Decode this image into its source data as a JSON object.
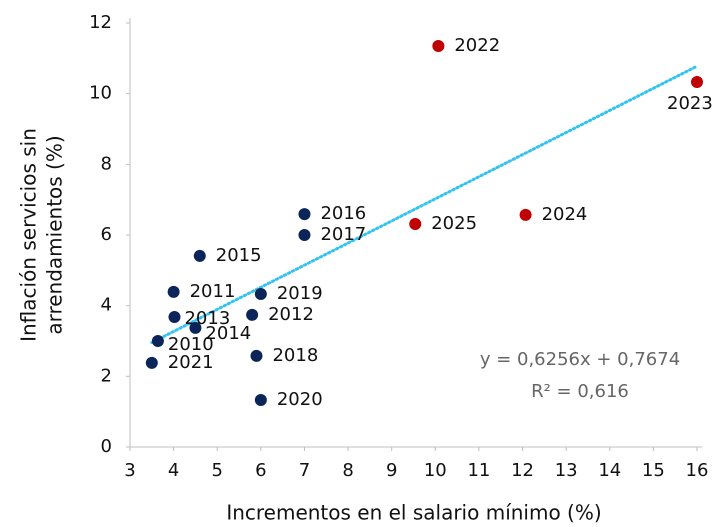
{
  "chart_data": {
    "type": "scatter",
    "xlabel": "Incrementos en el salario mínimo (%)",
    "ylabel": [
      "Inflación servicios sin",
      "arrendamientos (%)"
    ],
    "xlim": [
      3,
      16
    ],
    "xticks": [
      3,
      4,
      5,
      6,
      7,
      8,
      9,
      10,
      11,
      12,
      13,
      14,
      15,
      16
    ],
    "ylim": [
      0,
      12
    ],
    "yticks": [
      0,
      2,
      4,
      6,
      8,
      10,
      12
    ],
    "series": [
      {
        "color": "#0b2559",
        "labels": [
          "2010",
          "2011",
          "2012",
          "2013",
          "2014",
          "2015",
          "2016",
          "2017",
          "2018",
          "2019",
          "2020",
          "2021"
        ],
        "x": [
          3.64,
          4.0,
          5.8,
          4.02,
          4.5,
          4.6,
          7.0,
          7.0,
          5.9,
          6.0,
          6.0,
          3.5
        ],
        "values": [
          3.0,
          4.39,
          3.74,
          3.68,
          3.37,
          5.41,
          6.59,
          6.0,
          2.58,
          4.33,
          1.33,
          2.38
        ]
      },
      {
        "color": "#c00000",
        "labels": [
          "2022",
          "2023",
          "2024",
          "2025"
        ],
        "x": [
          10.07,
          16.0,
          12.07,
          9.54
        ],
        "values": [
          11.35,
          10.33,
          6.57,
          6.31
        ]
      }
    ],
    "trendline": {
      "slope": 0.6256,
      "intercept": 0.7674,
      "color": "#33c3f0"
    },
    "equation": "y = 0,6256x + 0,7674",
    "r2": "R² = 0,616"
  }
}
